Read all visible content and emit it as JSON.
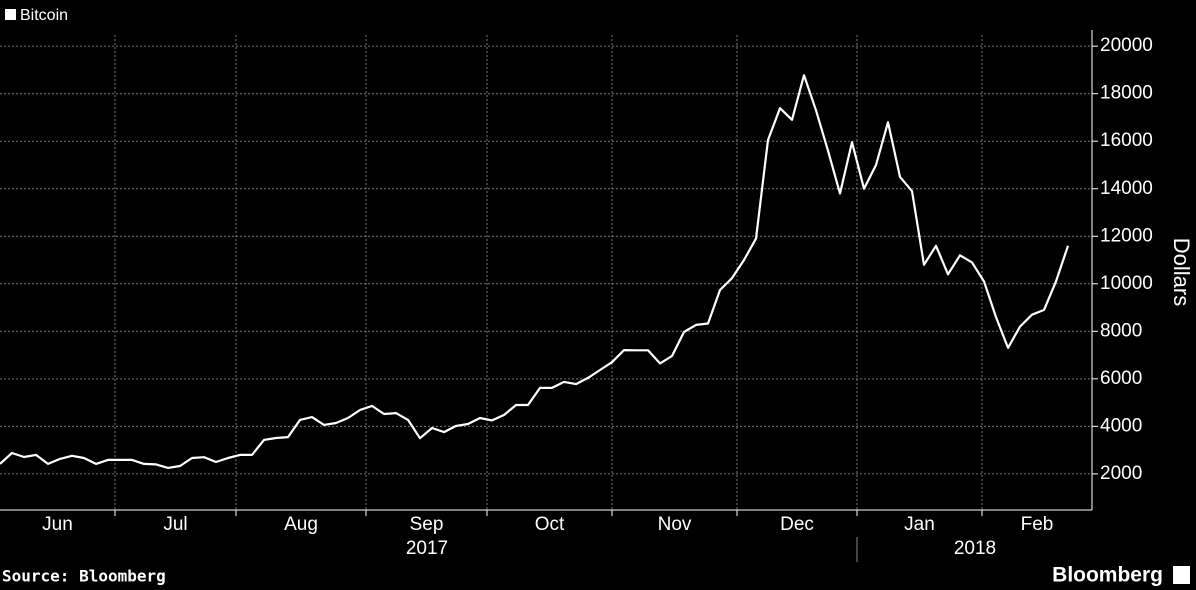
{
  "chart_data": {
    "type": "line",
    "legend": "Bitcoin",
    "ylabel": "Dollars",
    "source": "Source: Bloomberg",
    "brand": "Bloomberg",
    "months": [
      "Jun",
      "Jul",
      "Aug",
      "Sep",
      "Oct",
      "Nov",
      "Dec",
      "Jan",
      "Feb"
    ],
    "years": [
      "2017",
      "2018"
    ],
    "series": [
      {
        "name": "Bitcoin",
        "color": "#ffffff",
        "values": [
          2420,
          2880,
          2710,
          2800,
          2420,
          2630,
          2760,
          2670,
          2420,
          2590,
          2590,
          2590,
          2420,
          2400,
          2250,
          2330,
          2670,
          2700,
          2500,
          2670,
          2800,
          2800,
          3430,
          3510,
          3550,
          4270,
          4390,
          4060,
          4140,
          4350,
          4690,
          4860,
          4520,
          4560,
          4270,
          3500,
          3930,
          3760,
          4020,
          4100,
          4350,
          4250,
          4480,
          4900,
          4900,
          5620,
          5620,
          5870,
          5780,
          6040,
          6370,
          6700,
          7210,
          7200,
          7200,
          6650,
          6960,
          7970,
          8270,
          8330,
          9740,
          10240,
          11000,
          11900,
          16050,
          17390,
          16900,
          18780,
          17300,
          15600,
          13800,
          15960,
          14000,
          15000,
          16800,
          14500,
          13900,
          10800,
          11600,
          10400,
          11200,
          10900,
          10100,
          8600,
          7300,
          8200,
          8700,
          8900,
          10100,
          11600
        ]
      }
    ],
    "ylim": [
      480,
      20470
    ],
    "yticks": [
      2000,
      4000,
      6000,
      8000,
      10000,
      12000,
      14000,
      16000,
      18000,
      20000
    ],
    "grid": true
  }
}
